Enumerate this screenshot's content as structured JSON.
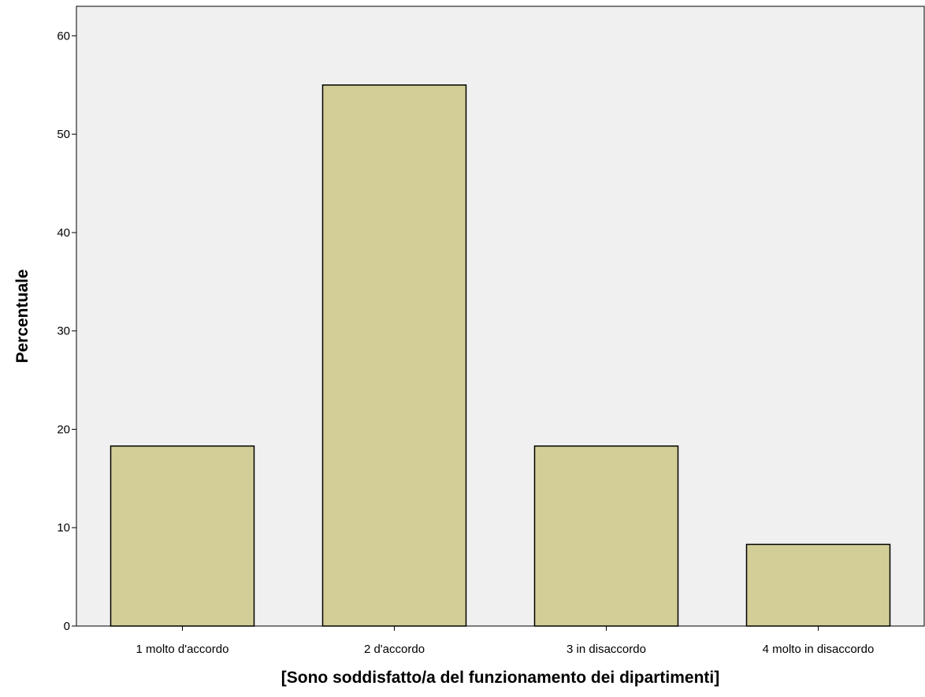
{
  "chart_data": {
    "type": "bar",
    "title": "",
    "xlabel": "[Sono soddisfatto/a del funzionamento dei dipartimenti]",
    "ylabel": "Percentuale",
    "categories": [
      "1 molto d'accordo",
      "2 d'accordo",
      "3 in disaccordo",
      "4 molto in disaccordo"
    ],
    "values": [
      18.3,
      55.0,
      18.3,
      8.3
    ],
    "ylim": [
      0,
      63
    ],
    "yticks": [
      0,
      10,
      20,
      30,
      40,
      50,
      60
    ],
    "grid": false,
    "legend": "none"
  },
  "colors": {
    "bar_fill": "#d3ce97",
    "bar_stroke": "#000000",
    "plot_background": "#f0f0f0",
    "page_background": "#ffffff"
  }
}
